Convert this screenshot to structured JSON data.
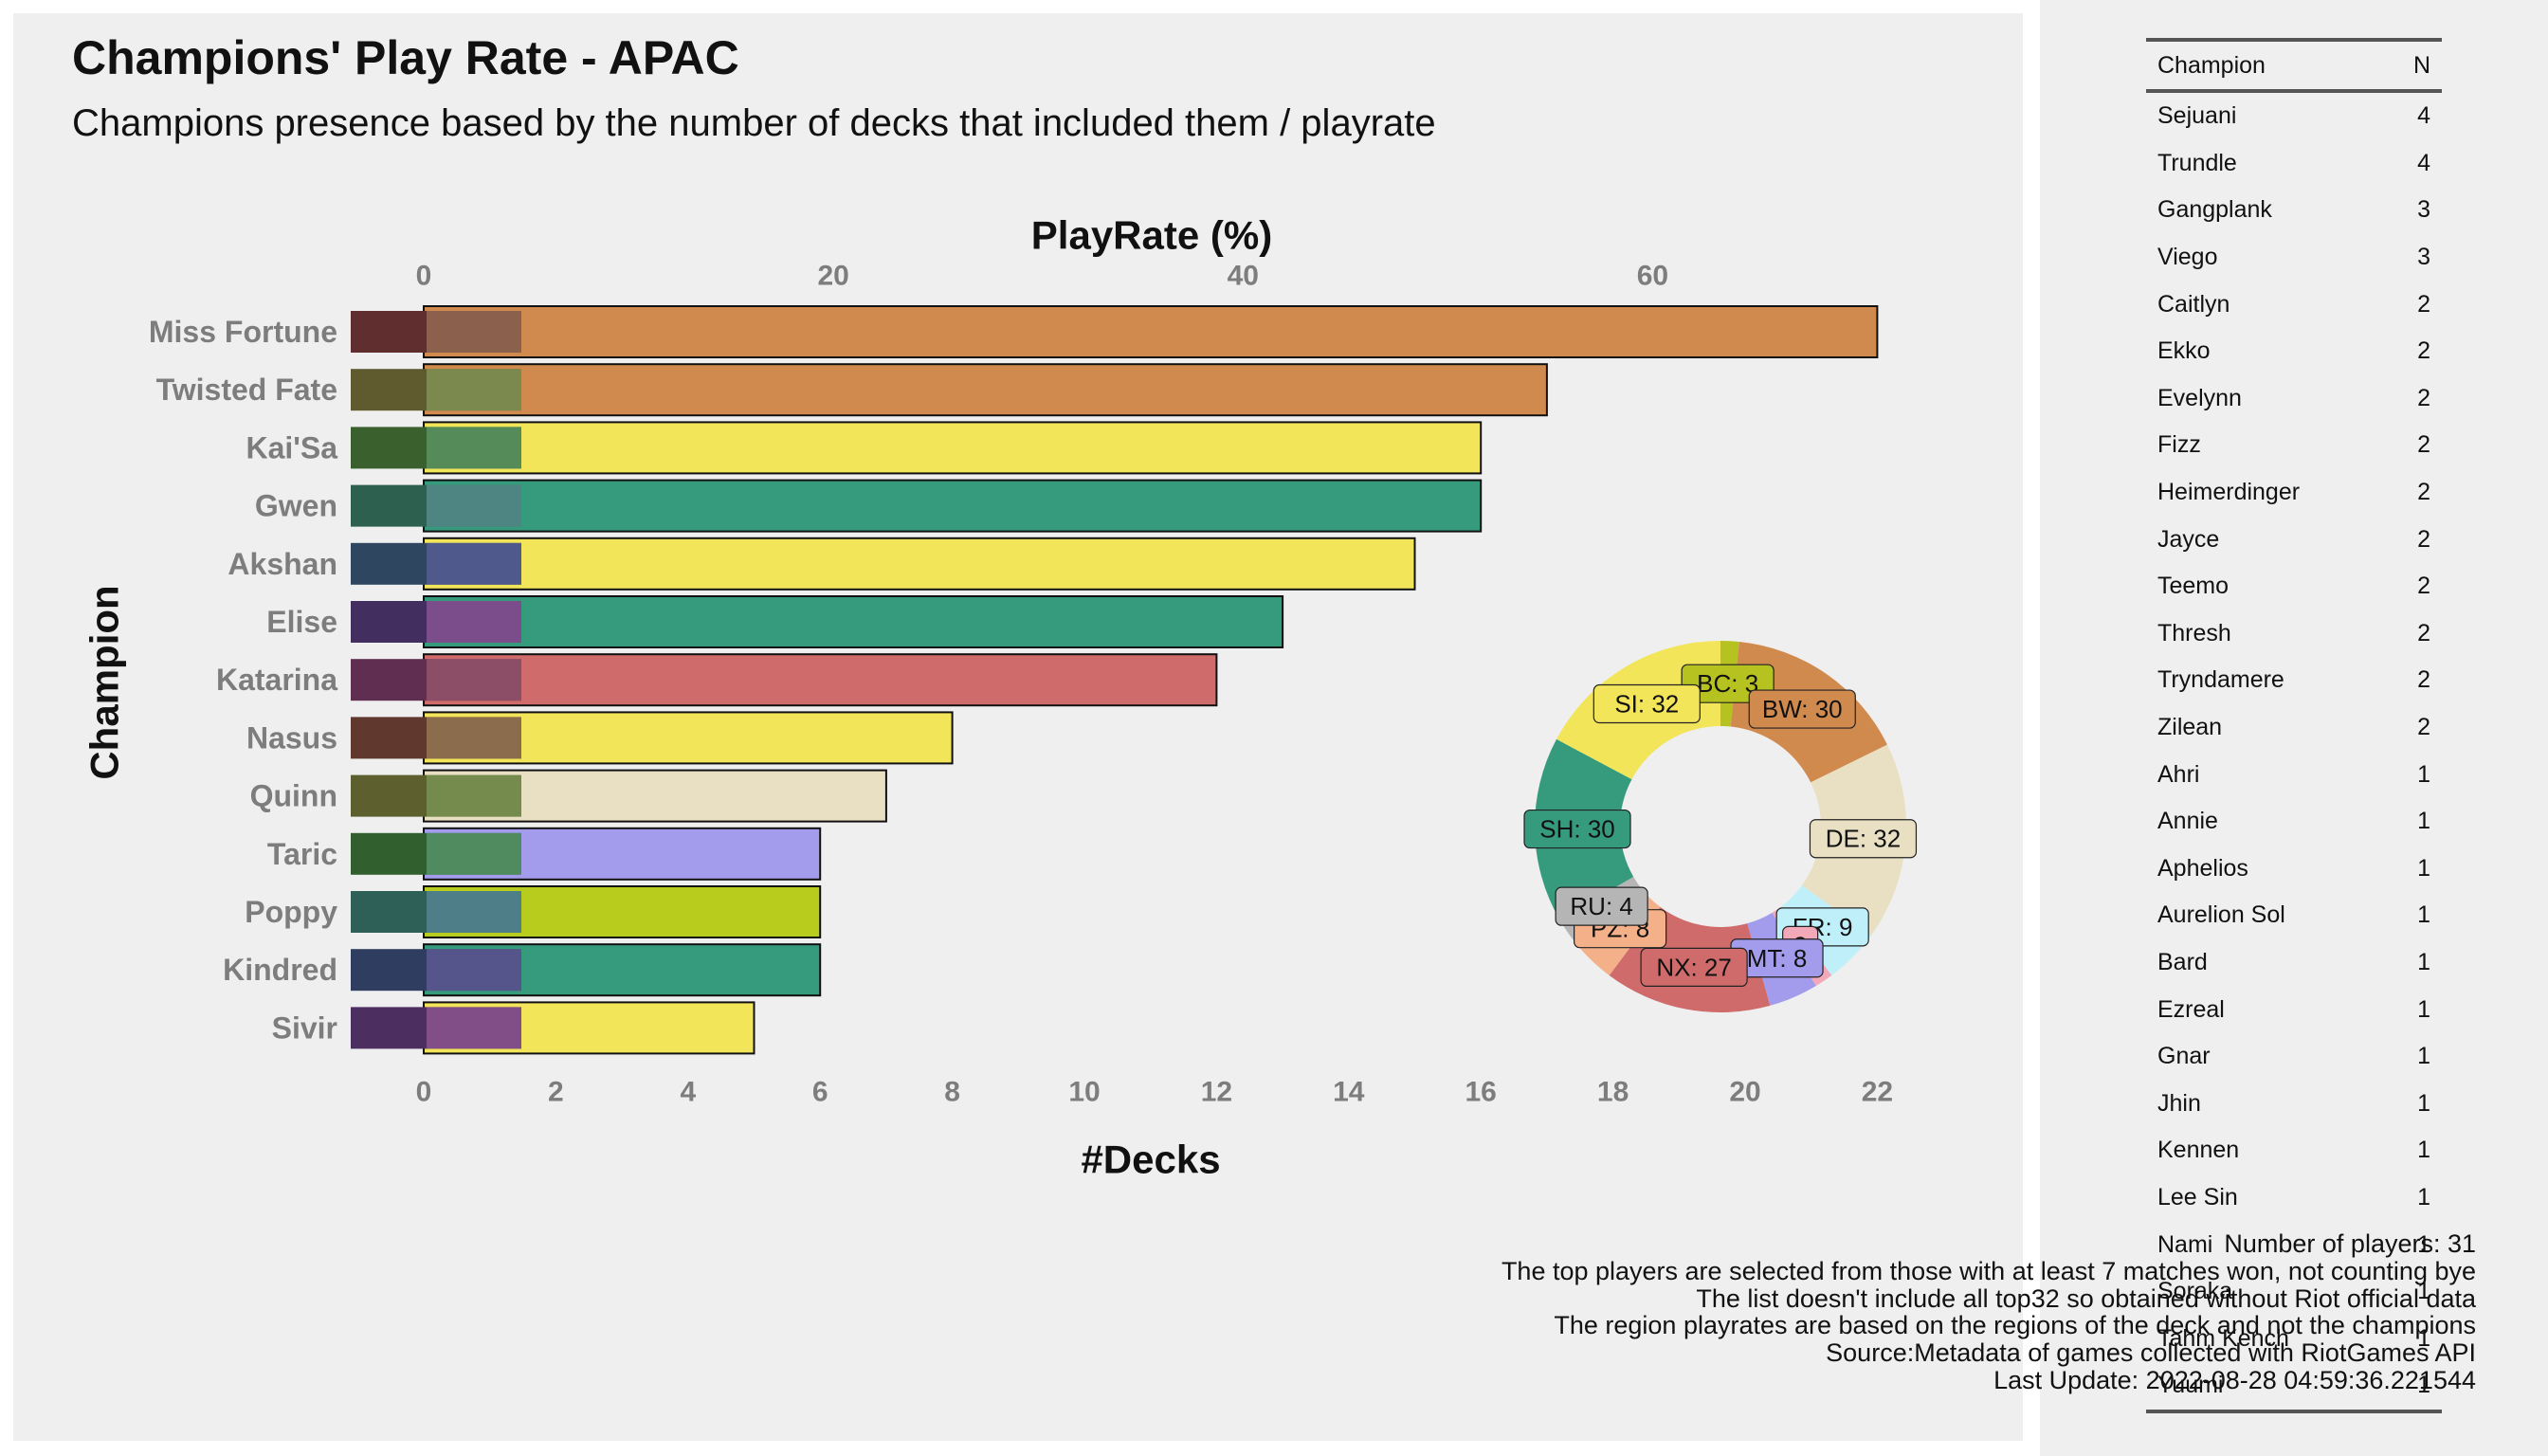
{
  "header": {
    "title": "Champions' Play Rate - APAC",
    "subtitle": "Champions presence based by the number of decks that included them / playrate"
  },
  "chart_data": [
    {
      "type": "bar",
      "orientation": "horizontal",
      "categories": [
        "Miss Fortune",
        "Twisted Fate",
        "Kai'Sa",
        "Gwen",
        "Akshan",
        "Elise",
        "Katarina",
        "Nasus",
        "Quinn",
        "Taric",
        "Poppy",
        "Kindred",
        "Sivir"
      ],
      "values": [
        22,
        17,
        16,
        16,
        15,
        13,
        12,
        8,
        7,
        6,
        6,
        6,
        5
      ],
      "bar_colors": [
        "#d18a4e",
        "#d18a4e",
        "#f2e55a",
        "#369a7c",
        "#f2e55a",
        "#369a7c",
        "#cf6b6b",
        "#f2e55a",
        "#e9dfc2",
        "#a39ced",
        "#b8cc1e",
        "#369a7c",
        "#f2e55a"
      ],
      "xlabel": "#Decks",
      "ylabel": "Champion",
      "xlim": [
        0,
        23.5
      ],
      "xticks": [
        0,
        2,
        4,
        6,
        8,
        10,
        12,
        14,
        16,
        18,
        20,
        22
      ],
      "secondary_axis": {
        "label": "PlayRate (%)",
        "ticks": [
          0,
          20,
          40,
          60
        ],
        "decks_total": 31
      },
      "grid": false
    },
    {
      "type": "pie",
      "style": "donut",
      "labels": [
        "BC",
        "BW",
        "DE",
        "FR",
        "BW",
        "MT",
        "NX",
        "PZ",
        "RU",
        "SH",
        "SI"
      ],
      "values": [
        3,
        30,
        32,
        9,
        3,
        8,
        27,
        8,
        4,
        30,
        32
      ],
      "display_labels": [
        "BC: 3",
        "BW: 30",
        "DE: 32",
        "FR: 9",
        "3",
        "MT: 8",
        "NX: 27",
        "PZ: 8",
        "RU: 4",
        "SH: 30",
        "SI: 32"
      ],
      "colors": [
        "#b5c220",
        "#d18a4e",
        "#e9dfc2",
        "#bff0fa",
        "#f1a8b8",
        "#a39ced",
        "#cf6b6b",
        "#f4b088",
        "#b5b5b5",
        "#369a7c",
        "#f2e55a"
      ]
    }
  ],
  "notes": [
    "Number of players: 31",
    "The top players are selected from those with at least 7 matches won, not counting bye",
    "The list doesn't include all top32 so obtained without Riot official data",
    "The region playrates are based on the regions of the deck and not the champions",
    "Source:Metadata of games collected with RiotGames API",
    "Last Update: 2022-08-28 04:59:36.221544"
  ],
  "champion_table": {
    "headers": [
      "Champion",
      "N"
    ],
    "rows": [
      [
        "Sejuani",
        "4"
      ],
      [
        "Trundle",
        "4"
      ],
      [
        "Gangplank",
        "3"
      ],
      [
        "Viego",
        "3"
      ],
      [
        "Caitlyn",
        "2"
      ],
      [
        "Ekko",
        "2"
      ],
      [
        "Evelynn",
        "2"
      ],
      [
        "Fizz",
        "2"
      ],
      [
        "Heimerdinger",
        "2"
      ],
      [
        "Jayce",
        "2"
      ],
      [
        "Teemo",
        "2"
      ],
      [
        "Thresh",
        "2"
      ],
      [
        "Tryndamere",
        "2"
      ],
      [
        "Zilean",
        "2"
      ],
      [
        "Ahri",
        "1"
      ],
      [
        "Annie",
        "1"
      ],
      [
        "Aphelios",
        "1"
      ],
      [
        "Aurelion Sol",
        "1"
      ],
      [
        "Bard",
        "1"
      ],
      [
        "Ezreal",
        "1"
      ],
      [
        "Gnar",
        "1"
      ],
      [
        "Jhin",
        "1"
      ],
      [
        "Kennen",
        "1"
      ],
      [
        "Lee Sin",
        "1"
      ],
      [
        "Nami",
        "1"
      ],
      [
        "Soraka",
        "1"
      ],
      [
        "Tahm Kench",
        "1"
      ],
      [
        "Yuumi",
        "1"
      ]
    ]
  }
}
